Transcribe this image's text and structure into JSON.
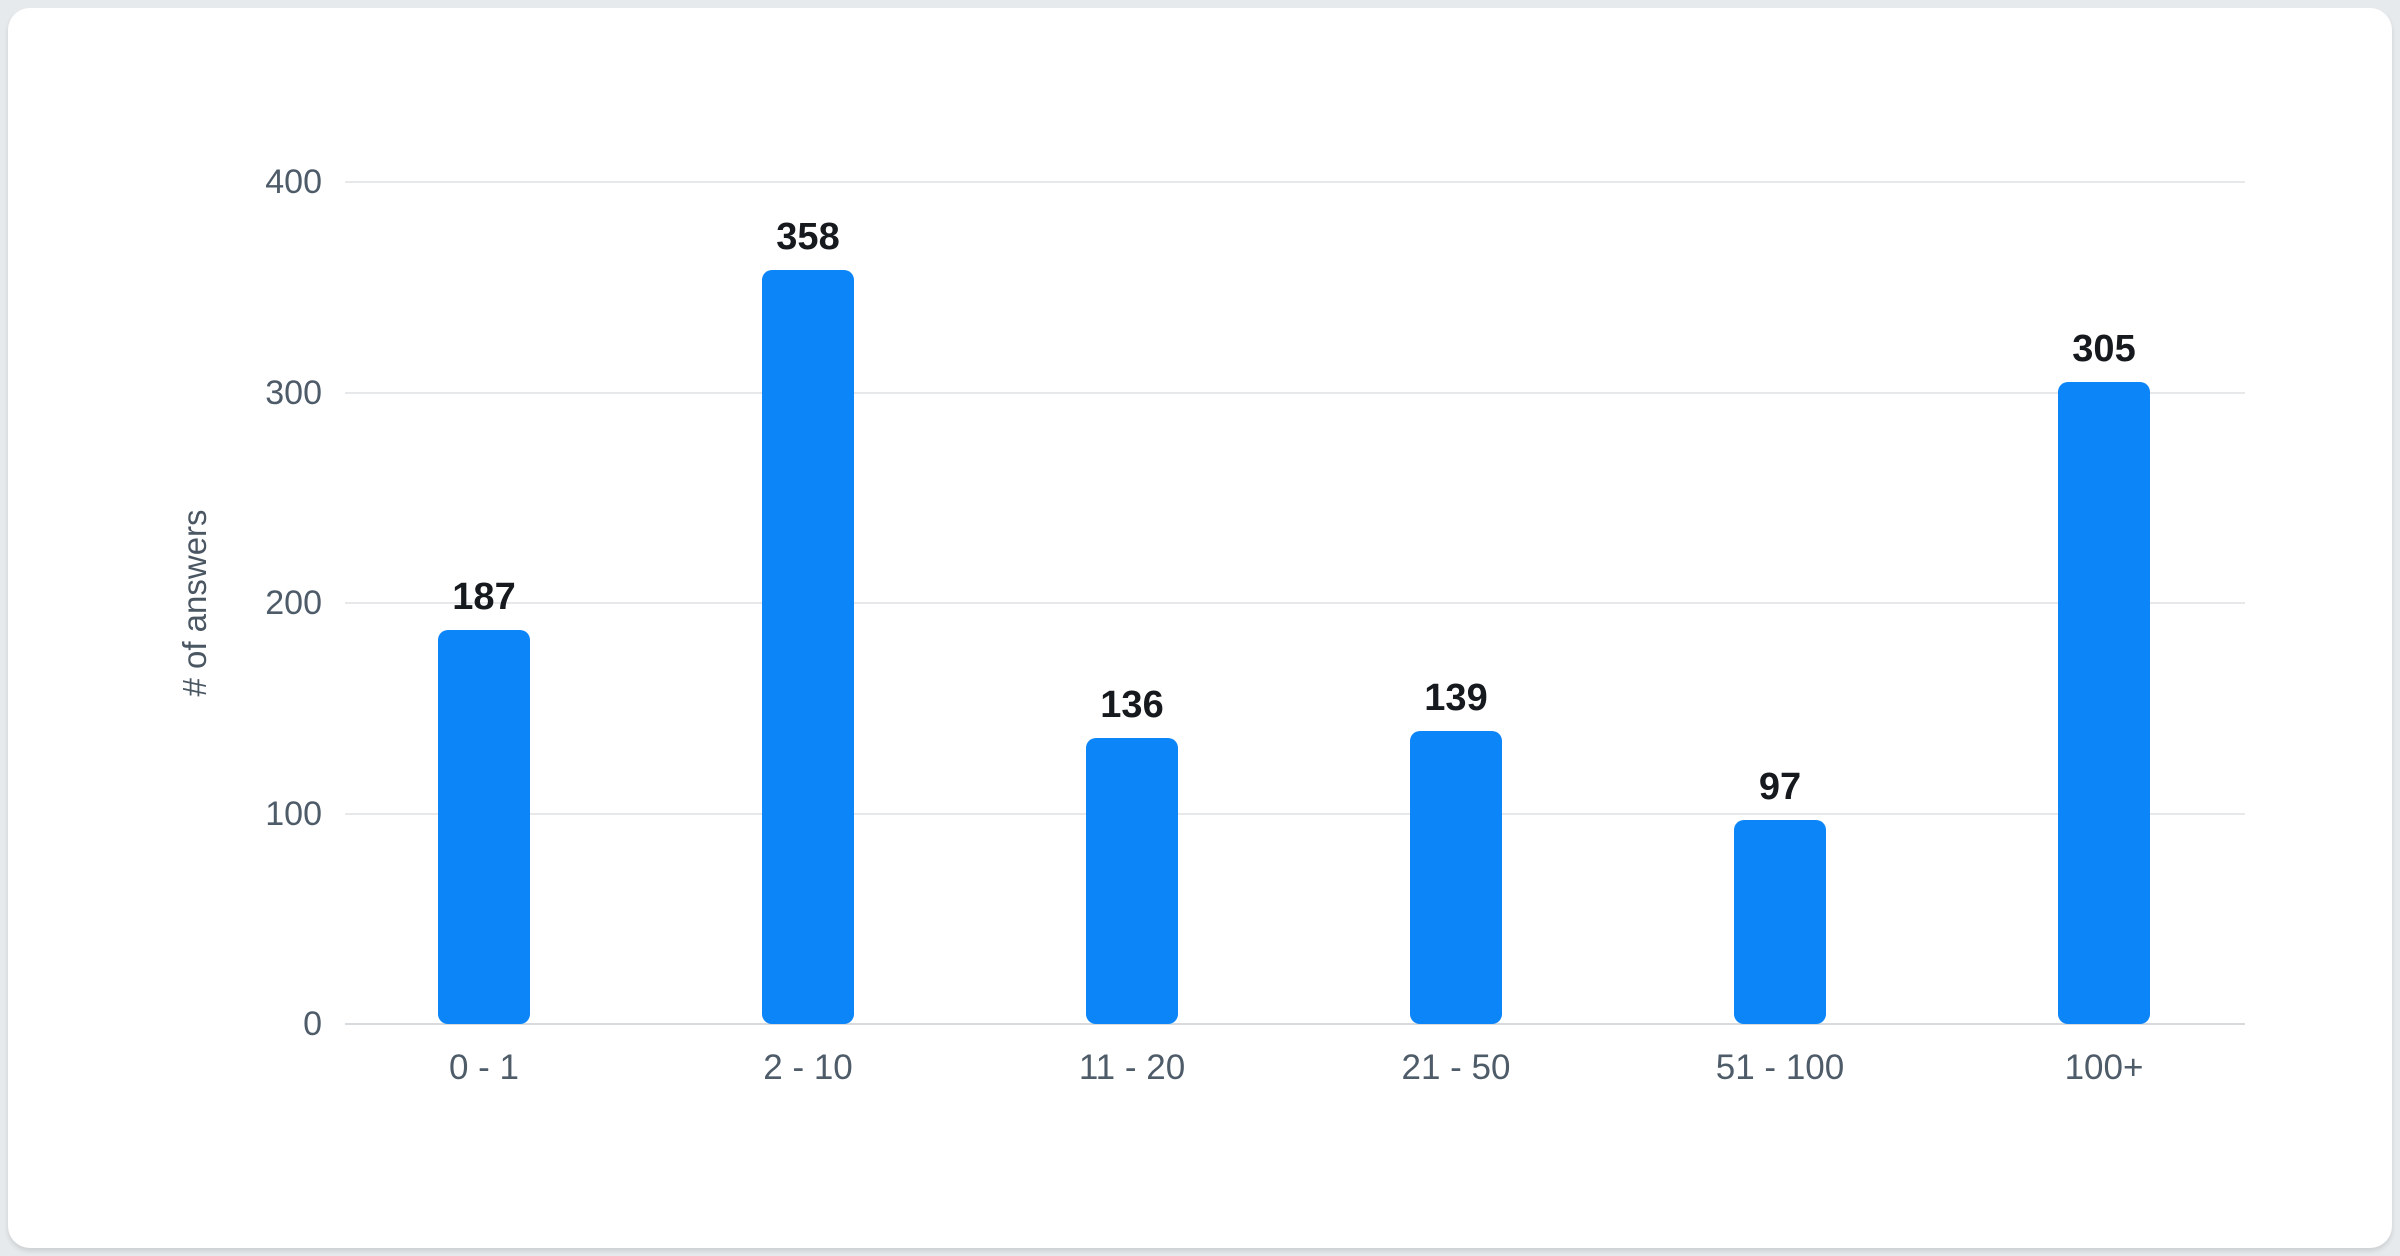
{
  "chart_data": {
    "type": "bar",
    "title": "",
    "xlabel": "",
    "ylabel": "# of answers",
    "categories": [
      "0 - 1",
      "2 - 10",
      "11 - 20",
      "21 - 50",
      "51 - 100",
      "100+"
    ],
    "values": [
      187,
      358,
      136,
      139,
      97,
      305
    ],
    "yticks": [
      "400",
      "300",
      "200",
      "100",
      "0"
    ],
    "ylim": [
      0,
      400
    ],
    "grid": true,
    "legend_position": "none",
    "bar_color": "#0b85f8",
    "gridline_color": "#e6e8ea",
    "axis_line_color": "#d8dbde",
    "tick_label_color": "#4e5b68",
    "value_label_color": "#16191d",
    "background_color": "#ffffff"
  }
}
